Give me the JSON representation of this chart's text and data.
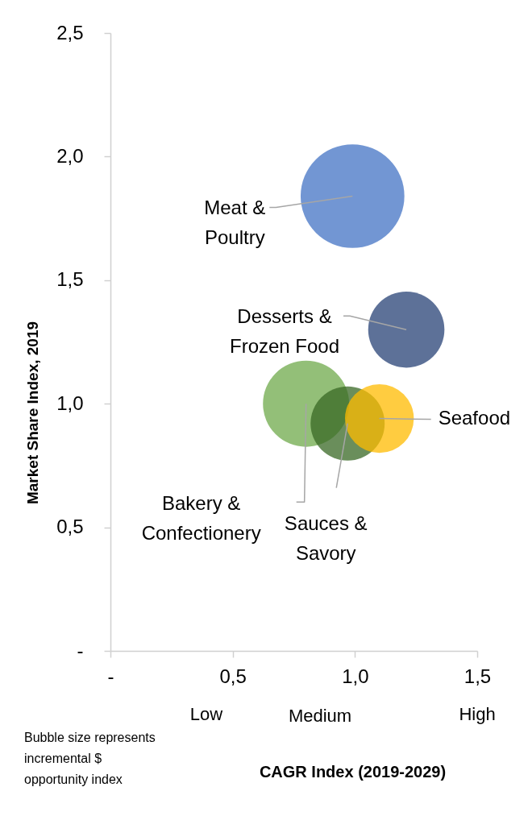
{
  "chart_data": {
    "type": "bubble",
    "xlabel": "CAGR Index (2019-2029)",
    "ylabel": "Market Share Index, 2019",
    "xlim": [
      0,
      1.5
    ],
    "xticks": [
      {
        "value": 0,
        "label": "-"
      },
      {
        "value": 0.5,
        "label": "0,5"
      },
      {
        "value": 1,
        "label": "1,0"
      },
      {
        "value": 1.5,
        "label": "1,5"
      }
    ],
    "ylim": [
      0,
      2.5
    ],
    "yticks": [
      {
        "value": 0,
        "label": "-"
      },
      {
        "value": 0.5,
        "label": "0,5"
      },
      {
        "value": 1,
        "label": "1,0"
      },
      {
        "value": 1.5,
        "label": "1,5"
      },
      {
        "value": 2,
        "label": "2,0"
      },
      {
        "value": 2.5,
        "label": "2,5"
      }
    ],
    "series": [
      {
        "name": "Meat & Poultry",
        "color": "#7296d3",
        "x": [
          0.99
        ],
        "values": [
          1.84
        ],
        "sizes": [
          1
        ]
      },
      {
        "name": "Desserts & Frozen Food",
        "color": "#5d7198",
        "x": [
          1.21
        ],
        "values": [
          1.3
        ],
        "sizes": [
          0.54
        ]
      },
      {
        "name": "Bakery & Confectionery",
        "color": "#93bf78",
        "x": [
          0.8
        ],
        "values": [
          1.0
        ],
        "sizes": [
          0.69
        ]
      },
      {
        "name": "Sauces & Savory",
        "color": "#6a8e5b",
        "x": [
          0.97
        ],
        "values": [
          0.92
        ],
        "sizes": [
          0.51
        ]
      },
      {
        "name": "Seafood",
        "color": "#ffcc40",
        "x": [
          1.1
        ],
        "values": [
          0.94
        ],
        "sizes": [
          0.44
        ]
      }
    ],
    "annotations": [
      "Low",
      "Medium",
      "High",
      "Bubble size represents incremental $ opportunity index"
    ]
  }
}
